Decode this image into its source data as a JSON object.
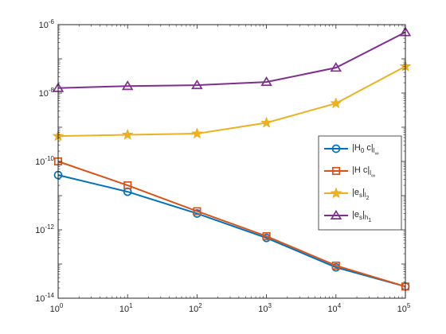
{
  "chart_data": {
    "type": "line",
    "xscale": "log",
    "yscale": "log",
    "xlim": [
      1,
      100000
    ],
    "ylim": [
      1e-14,
      1e-06
    ],
    "grid": false,
    "legend_position": "right",
    "x_ticks": [
      {
        "base": "10",
        "exp": "0"
      },
      {
        "base": "10",
        "exp": "1"
      },
      {
        "base": "10",
        "exp": "2"
      },
      {
        "base": "10",
        "exp": "3"
      },
      {
        "base": "10",
        "exp": "4"
      },
      {
        "base": "10",
        "exp": "5"
      }
    ],
    "y_ticks": [
      {
        "base": "10",
        "exp": "-14"
      },
      {
        "base": "10",
        "exp": "-12"
      },
      {
        "base": "10",
        "exp": "-10"
      },
      {
        "base": "10",
        "exp": "-8"
      },
      {
        "base": "10",
        "exp": "-6"
      }
    ],
    "x": [
      1,
      10,
      100,
      1000,
      10000,
      100000
    ],
    "series": [
      {
        "key": "h0c",
        "legend": {
          "pre": "|H",
          "sub1": "0",
          "mid": " c|",
          "sub2": "l",
          "sub3": "∞"
        },
        "color": "#0072BD",
        "marker": "circle",
        "values": [
          4e-11,
          1.3e-11,
          3e-12,
          5.8e-13,
          8e-14,
          2.2e-14
        ]
      },
      {
        "key": "hc",
        "legend": {
          "pre": "|H c|",
          "sub1": "",
          "mid": "",
          "sub2": "l",
          "sub3": "∞"
        },
        "color": "#D95319",
        "marker": "square",
        "values": [
          1e-10,
          2e-11,
          3.5e-12,
          6.5e-13,
          9e-14,
          2.2e-14
        ]
      },
      {
        "key": "esl2",
        "legend": {
          "pre": "|e",
          "sub1": "s",
          "mid": "|",
          "sub2": "l",
          "sub3": "2"
        },
        "color": "#EDB120",
        "marker": "star",
        "values": [
          5.5e-10,
          6e-10,
          6.5e-10,
          1.35e-09,
          5e-09,
          6e-08
        ]
      },
      {
        "key": "esh1",
        "legend": {
          "pre": "|e",
          "sub1": "s",
          "mid": "|",
          "sub2": "h",
          "sub3": "1"
        },
        "color": "#7E2F8E",
        "marker": "triangle",
        "values": [
          1.4e-08,
          1.6e-08,
          1.7e-08,
          2.1e-08,
          5.5e-08,
          6e-07
        ]
      }
    ]
  }
}
